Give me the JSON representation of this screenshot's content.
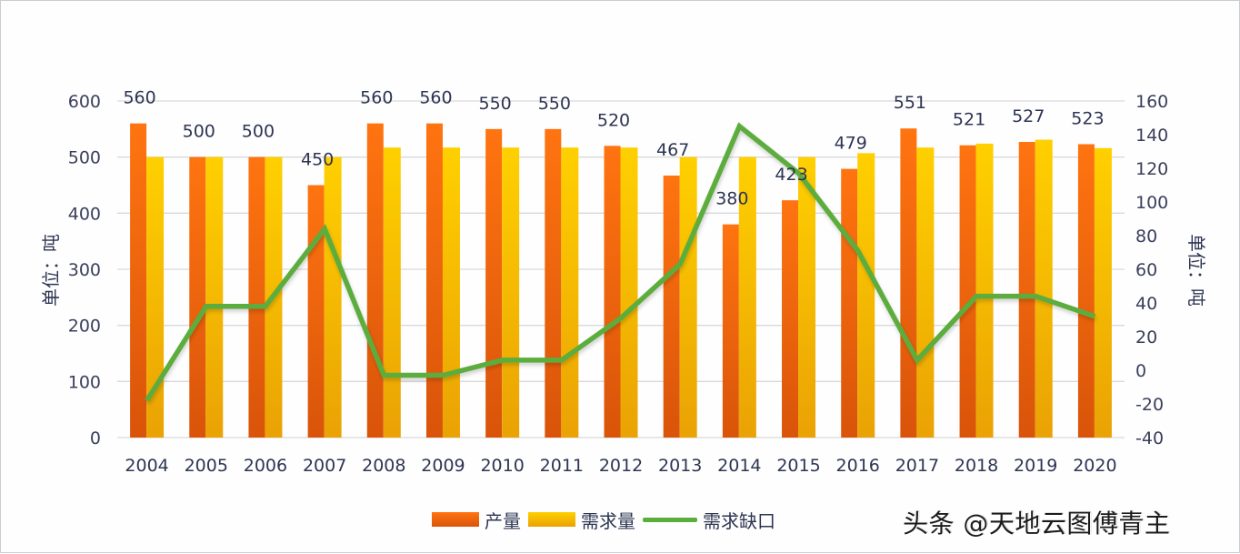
{
  "chart_data": {
    "type": "bar+line",
    "title": "",
    "categories": [
      "2004",
      "2005",
      "2006",
      "2007",
      "2008",
      "2009",
      "2010",
      "2011",
      "2012",
      "2013",
      "2014",
      "2015",
      "2016",
      "2017",
      "2018",
      "2019",
      "2020"
    ],
    "series": [
      {
        "name": "产量",
        "type": "bar",
        "axis": "left",
        "color": "#ff6a0c",
        "values": [
          560,
          500,
          500,
          450,
          560,
          560,
          550,
          550,
          520,
          467,
          380,
          423,
          479,
          551,
          521,
          527,
          523
        ],
        "data_labels": [
          "560",
          "500",
          "500",
          "450",
          "560",
          "560",
          "550",
          "550",
          "520",
          "467",
          "380",
          "423",
          "479",
          "551",
          "521",
          "527",
          "523"
        ]
      },
      {
        "name": "需求量",
        "type": "bar",
        "axis": "left",
        "color": "#ffc000",
        "values": [
          500,
          500,
          500,
          500,
          517,
          517,
          517,
          517,
          517,
          500,
          500,
          500,
          507,
          517,
          524,
          531,
          516
        ]
      },
      {
        "name": "需求缺口",
        "type": "line",
        "axis": "right",
        "color": "#5bad3c",
        "values": [
          -18,
          38,
          38,
          84,
          -3,
          -3,
          6,
          6,
          31,
          63,
          145,
          117,
          71,
          6,
          44,
          44,
          32
        ]
      }
    ],
    "ylabel": "单位：吨",
    "y2label": "单位：吨",
    "xlabel": "",
    "ylim": [
      0,
      600
    ],
    "yticks": [
      "0",
      "100",
      "200",
      "300",
      "400",
      "500",
      "600"
    ],
    "y2lim": [
      -40,
      160
    ],
    "y2ticks": [
      "-40",
      "-20",
      "0",
      "20",
      "40",
      "60",
      "80",
      "100",
      "120",
      "140",
      "160"
    ],
    "grid": true,
    "legend_position": "bottom"
  },
  "legend": {
    "items": [
      {
        "label": "产量",
        "kind": "bar",
        "color": "#ff6a0c"
      },
      {
        "label": "需求量",
        "kind": "bar",
        "color": "#ffc000"
      },
      {
        "label": "需求缺口",
        "kind": "line",
        "color": "#5bad3c"
      }
    ]
  },
  "watermark": "头条 @天地云图傅青主"
}
